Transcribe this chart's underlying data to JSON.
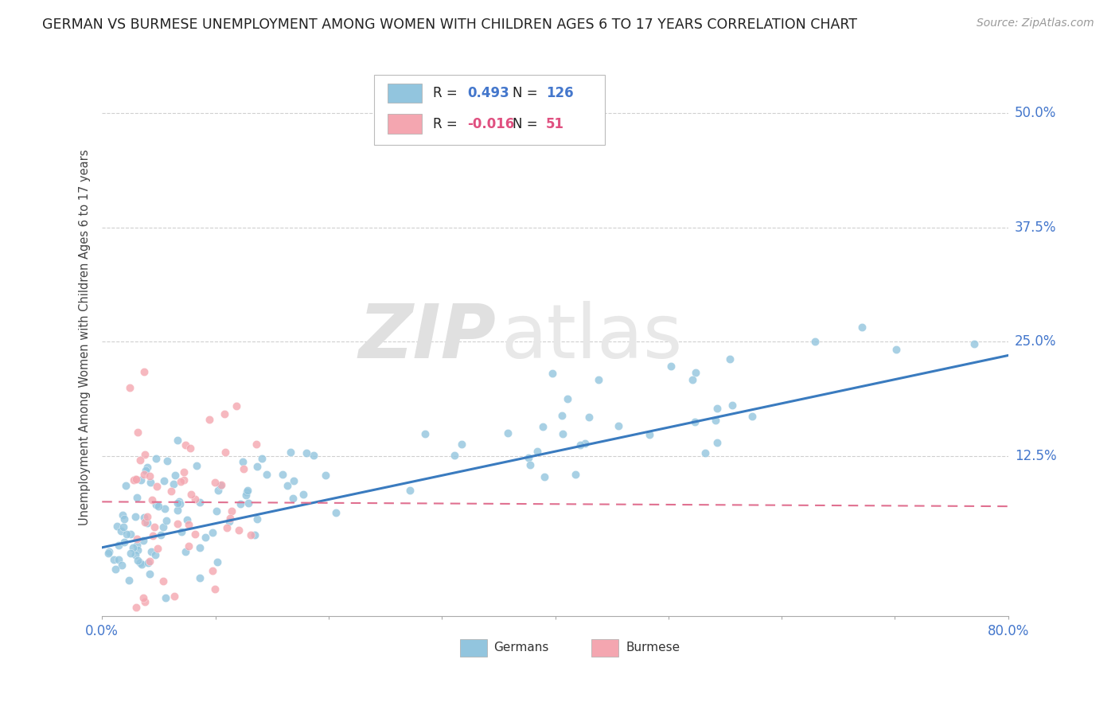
{
  "title": "GERMAN VS BURMESE UNEMPLOYMENT AMONG WOMEN WITH CHILDREN AGES 6 TO 17 YEARS CORRELATION CHART",
  "source": "Source: ZipAtlas.com",
  "ylabel": "Unemployment Among Women with Children Ages 6 to 17 years",
  "ytick_labels": [
    "12.5%",
    "25.0%",
    "37.5%",
    "50.0%"
  ],
  "ytick_values": [
    0.125,
    0.25,
    0.375,
    0.5
  ],
  "xmin": 0.0,
  "xmax": 0.8,
  "ymin": -0.05,
  "ymax": 0.56,
  "german_color": "#92c5de",
  "burmese_color": "#f4a6b0",
  "german_line_color": "#3a7bbf",
  "burmese_line_color": "#e07090",
  "r_german": 0.493,
  "n_german": 126,
  "r_burmese": -0.016,
  "n_burmese": 51,
  "watermark_zip": "ZIP",
  "watermark_atlas": "atlas",
  "german_line_x0": 0.0,
  "german_line_y0": 0.025,
  "german_line_x1": 0.8,
  "german_line_y1": 0.235,
  "burmese_line_x0": 0.0,
  "burmese_line_y0": 0.075,
  "burmese_line_x1": 0.8,
  "burmese_line_y1": 0.07
}
